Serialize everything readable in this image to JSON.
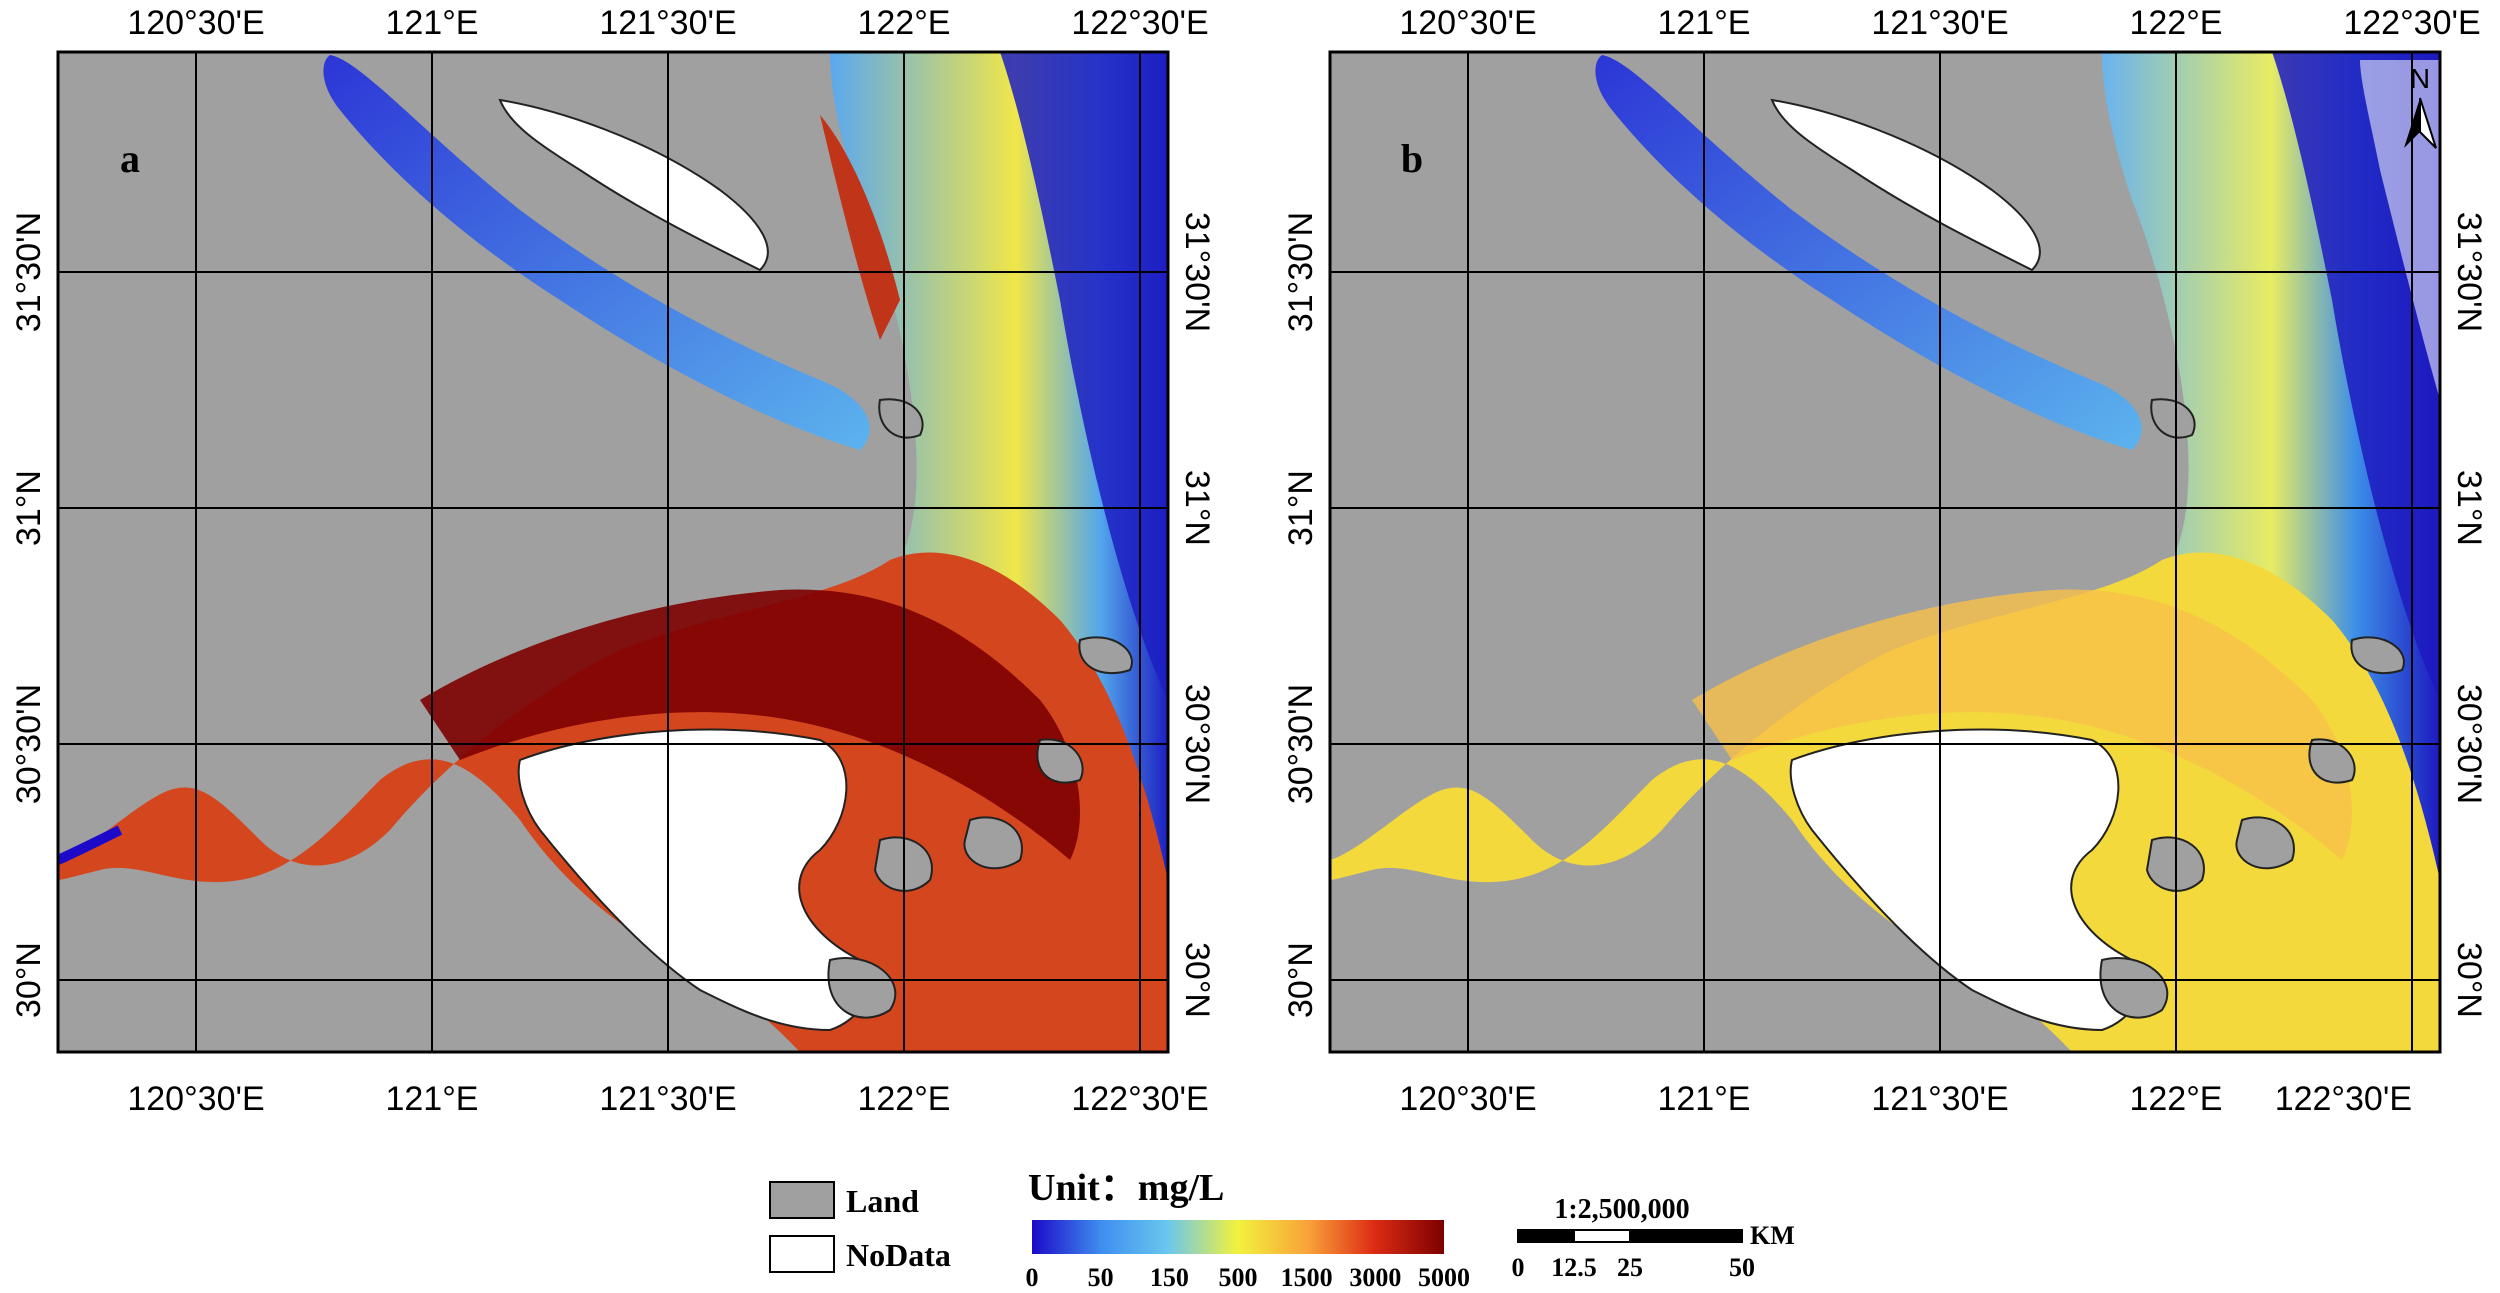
{
  "panels": [
    {
      "label": "a",
      "lon_ticks": [
        "120°30'E",
        "121°E",
        "121°30'E",
        "122°E",
        "122°30'E"
      ],
      "lat_ticks": [
        "31°30'N",
        "31°N",
        "30°30'N",
        "30°N"
      ]
    },
    {
      "label": "b",
      "lon_ticks": [
        "120°30'E",
        "121°E",
        "121°30'E",
        "122°E",
        "122°30'E"
      ],
      "lat_ticks": [
        "31°30'N",
        "31°N",
        "30°30'N",
        "30°N"
      ]
    }
  ],
  "north_arrow": "N",
  "legend": {
    "land_label": "Land",
    "nodata_label": "NoData",
    "land_color": "#a0a0a0",
    "nodata_color": "#ffffff",
    "unit_label": "Unit：mg/L",
    "colorbar_ticks": [
      "0",
      "50",
      "150",
      "500",
      "1500",
      "3000",
      "5000"
    ],
    "colorbar_colors": [
      "#1c0ac8",
      "#3f8ff0",
      "#6ac7ee",
      "#f2f23c",
      "#f9a23a",
      "#dd2c14",
      "#7d0000"
    ]
  },
  "scale_bar": {
    "ratio": "1:2,500,000",
    "unit": "KM",
    "ticks": [
      "0",
      "12.5",
      "25",
      "50"
    ]
  }
}
